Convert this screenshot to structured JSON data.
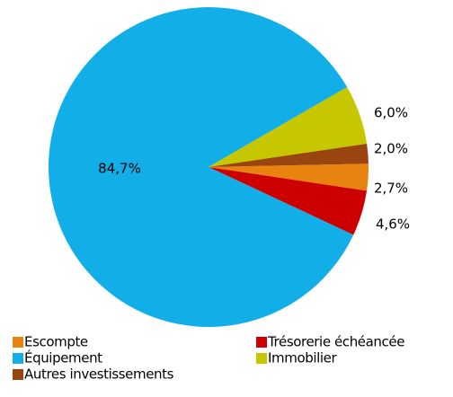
{
  "chart_data": {
    "type": "pie",
    "categories": [
      "Escompte",
      "Trésorerie échéancée",
      "Équipement",
      "Immobilier",
      "Autres investissements"
    ],
    "values": [
      2.7,
      4.6,
      84.7,
      6.0,
      2.0
    ],
    "value_labels": [
      "2,7%",
      "4,6%",
      "84,7%",
      "6,0%",
      "2,0%"
    ],
    "colors": [
      "#e8830f",
      "#cc0000",
      "#12aee8",
      "#c7c700",
      "#9a4510"
    ],
    "legend": "bottom"
  }
}
